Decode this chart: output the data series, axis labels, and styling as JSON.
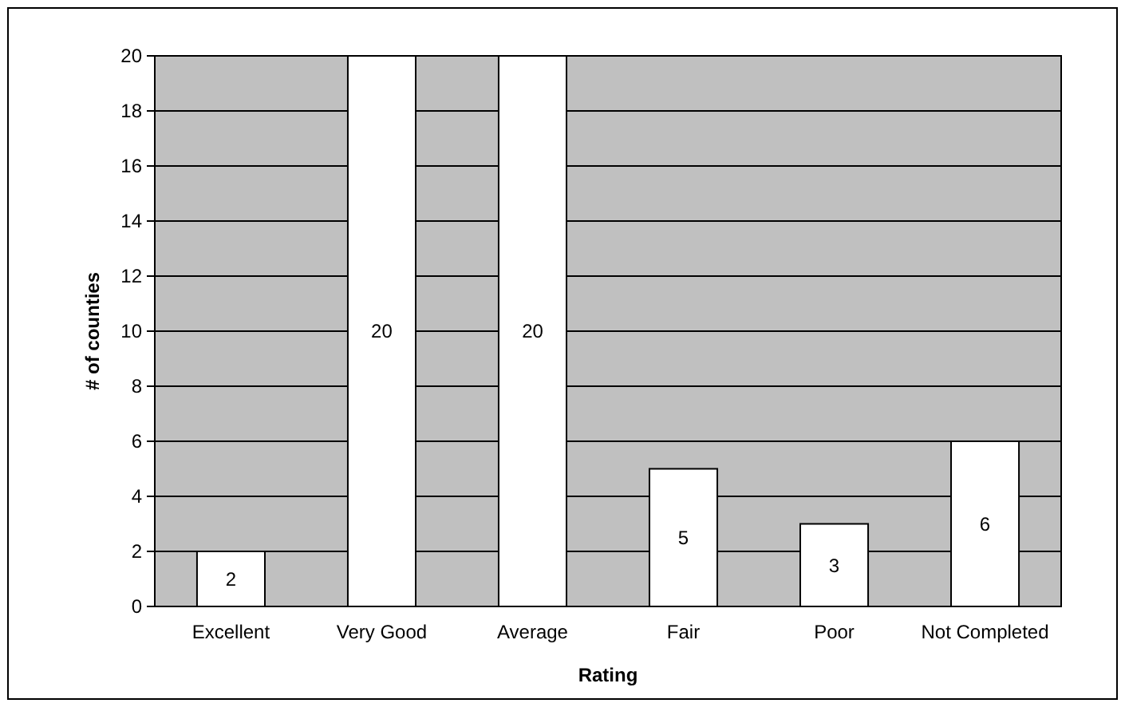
{
  "chart_data": {
    "type": "bar",
    "xlabel": "Rating",
    "ylabel": "# of counties",
    "categories": [
      "Excellent",
      "Very Good",
      "Average",
      "Fair",
      "Poor",
      "Not Completed"
    ],
    "values": [
      2,
      20,
      20,
      5,
      3,
      6
    ],
    "color": "#ffffff",
    "ylim": [
      0,
      20
    ],
    "yticks": [
      0,
      2,
      4,
      6,
      8,
      10,
      12,
      14,
      16,
      18,
      20
    ],
    "grid": "y",
    "data_labels": true
  }
}
